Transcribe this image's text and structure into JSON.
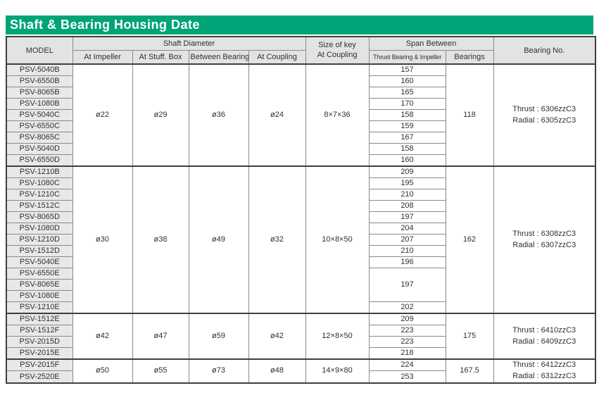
{
  "title": "Shaft & Bearing Housing Date",
  "colors": {
    "accent_green": "#00a478",
    "header_gray": "#e3e3e3",
    "model_cell_gray": "#e8e8e8",
    "border_dark": "#3f3f3f",
    "border_light": "#8a8a8a"
  },
  "table": {
    "header": {
      "model": "MODEL",
      "shaft_diameter": "Shaft Diameter",
      "shaft_sub": [
        "At Impeller",
        "At Stuff. Box",
        "Between Bearing",
        "At Coupling"
      ],
      "size_of_key_line1": "Size of key",
      "size_of_key_line2": "At Coupling",
      "span_between": "Span Between",
      "span_sub": [
        "Thrust Bearing & Impeller",
        "Bearings"
      ],
      "bearing_no": "Bearing No."
    },
    "groups": [
      {
        "models": [
          "PSV-5040B",
          "PSV-6550B",
          "PSV-8065B",
          "PSV-1080B",
          "PSV-5040C",
          "PSV-6550C",
          "PSV-8065C",
          "PSV-5040D",
          "PSV-6550D"
        ],
        "at_impeller": "ø22",
        "at_stuff_box": "ø29",
        "between_bearing": "ø36",
        "at_coupling": "ø24",
        "key_size": "8×7×36",
        "spans": [
          {
            "value": "157",
            "rows": 1
          },
          {
            "value": "160",
            "rows": 1
          },
          {
            "value": "165",
            "rows": 1
          },
          {
            "value": "170",
            "rows": 1
          },
          {
            "value": "158",
            "rows": 1
          },
          {
            "value": "159",
            "rows": 1
          },
          {
            "value": "167",
            "rows": 1
          },
          {
            "value": "158",
            "rows": 1
          },
          {
            "value": "160",
            "rows": 1
          }
        ],
        "bearings": "118",
        "bearing_no": [
          "Thrust : 6306zzC3",
          "Radial : 6305zzC3"
        ]
      },
      {
        "models": [
          "PSV-1210B",
          "PSV-1080C",
          "PSV-1210C",
          "PSV-1512C",
          "PSV-8065D",
          "PSV-1080D",
          "PSV-1210D",
          "PSV-1512D",
          "PSV-5040E",
          "PSV-6550E",
          "PSV-8065E",
          "PSV-1080E",
          "PSV-1210E"
        ],
        "at_impeller": "ø30",
        "at_stuff_box": "ø38",
        "between_bearing": "ø49",
        "at_coupling": "ø32",
        "key_size": "10×8×50",
        "spans": [
          {
            "value": "209",
            "rows": 1
          },
          {
            "value": "195",
            "rows": 1
          },
          {
            "value": "210",
            "rows": 1
          },
          {
            "value": "208",
            "rows": 1
          },
          {
            "value": "197",
            "rows": 1
          },
          {
            "value": "204",
            "rows": 1
          },
          {
            "value": "207",
            "rows": 1
          },
          {
            "value": "210",
            "rows": 1
          },
          {
            "value": "196",
            "rows": 1
          },
          {
            "value": "197",
            "rows": 3
          },
          {
            "value": "202",
            "rows": 1
          }
        ],
        "bearings": "162",
        "bearing_no": [
          "Thrust : 6308zzC3",
          "Radial : 6307zzC3"
        ]
      },
      {
        "models": [
          "PSV-1512E",
          "PSV-1512F",
          "PSV-2015D",
          "PSV-2015E"
        ],
        "at_impeller": "ø42",
        "at_stuff_box": "ø47",
        "between_bearing": "ø59",
        "at_coupling": "ø42",
        "key_size": "12×8×50",
        "spans": [
          {
            "value": "209",
            "rows": 1
          },
          {
            "value": "223",
            "rows": 1
          },
          {
            "value": "223",
            "rows": 1
          },
          {
            "value": "218",
            "rows": 1
          }
        ],
        "bearings": "175",
        "bearing_no": [
          "Thrust : 6410zzC3",
          "Radial : 6409zzC3"
        ]
      },
      {
        "models": [
          "PSV-2015F",
          "PSV-2520E"
        ],
        "at_impeller": "ø50",
        "at_stuff_box": "ø55",
        "between_bearing": "ø73",
        "at_coupling": "ø48",
        "key_size": "14×9×80",
        "spans": [
          {
            "value": "224",
            "rows": 1
          },
          {
            "value": "253",
            "rows": 1
          }
        ],
        "bearings": "167.5",
        "bearing_no": [
          "Thrust : 6412zzC3",
          "Radial : 6312zzC3"
        ]
      }
    ]
  }
}
